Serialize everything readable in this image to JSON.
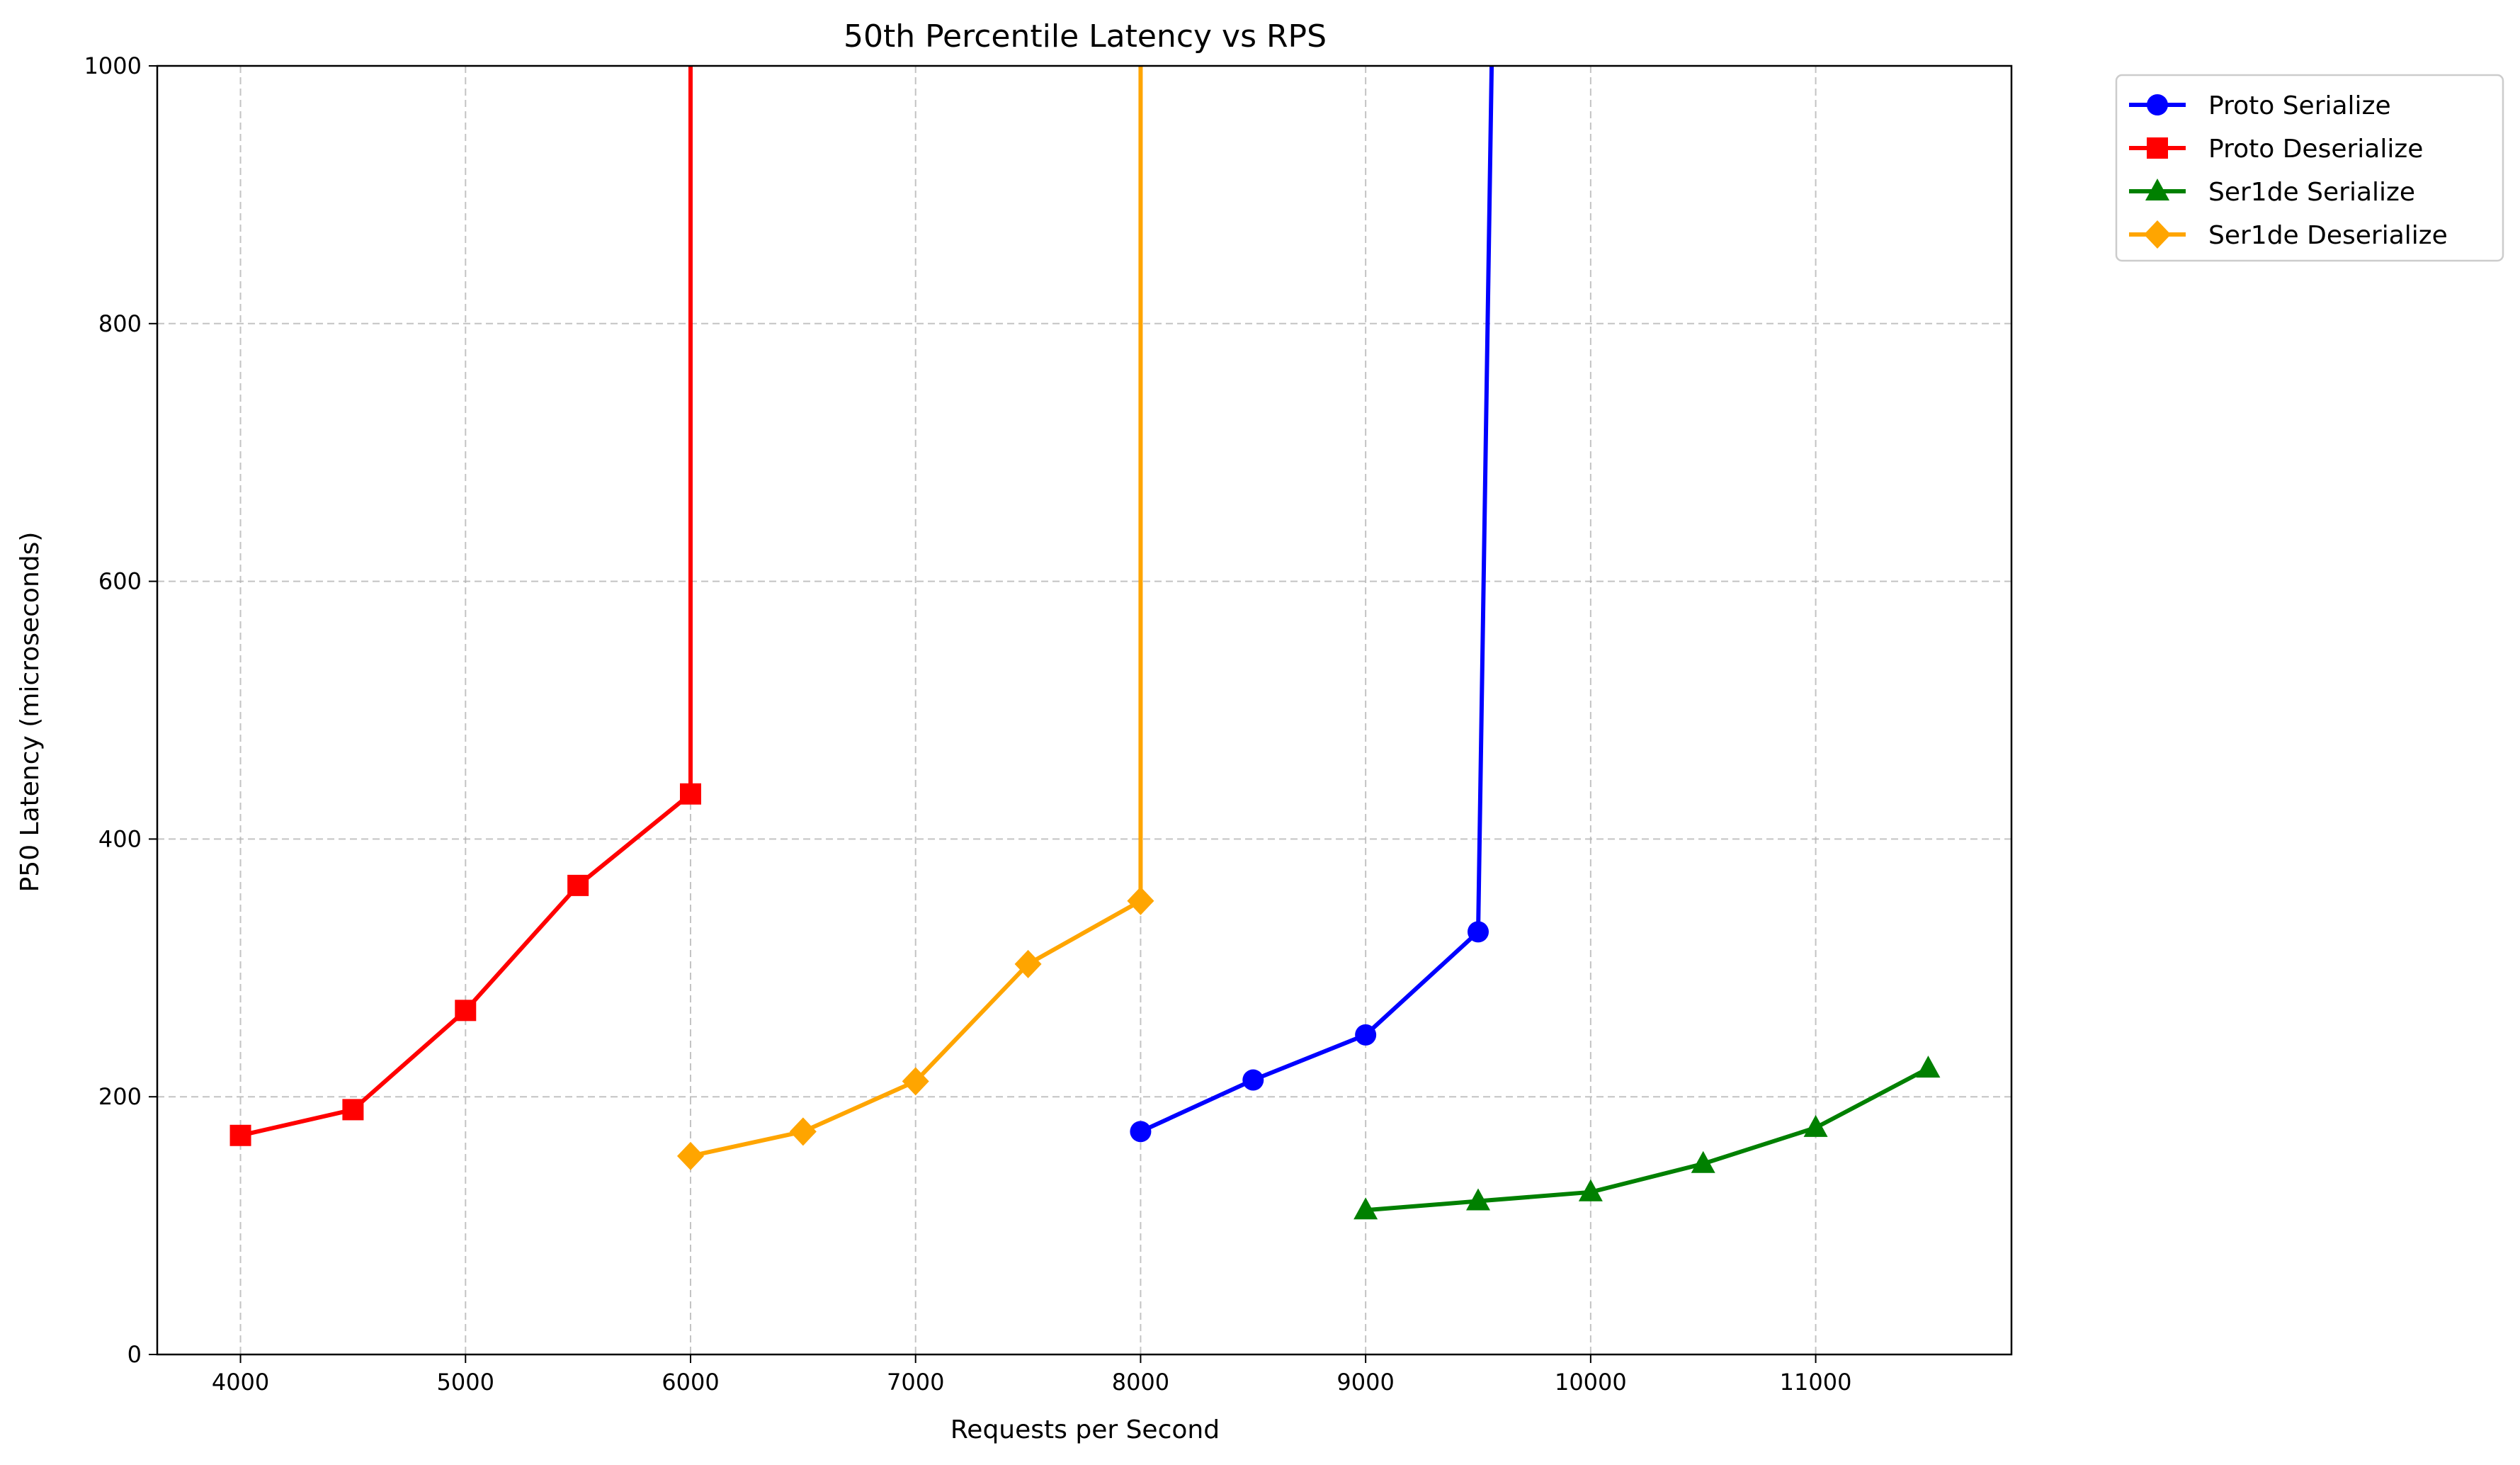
{
  "chart_data": {
    "type": "line",
    "title": "50th Percentile Latency vs RPS",
    "xlabel": "Requests per Second",
    "ylabel": "P50 Latency (microseconds)",
    "xlim": [
      3630,
      11870
    ],
    "ylim": [
      0,
      1000
    ],
    "x_ticks": [
      4000,
      5000,
      6000,
      7000,
      8000,
      9000,
      10000,
      11000
    ],
    "y_ticks": [
      0,
      200,
      400,
      600,
      800,
      1000
    ],
    "grid": true,
    "legend_position": "outside-top-right",
    "series": [
      {
        "name": "Proto Serialize",
        "color": "#0000ff",
        "marker": "circle",
        "points": [
          [
            8000,
            173
          ],
          [
            8500,
            213
          ],
          [
            9000,
            248
          ],
          [
            9500,
            328
          ],
          [
            9560,
            1000
          ]
        ],
        "marker_count": 4
      },
      {
        "name": "Proto Deserialize",
        "color": "#ff0000",
        "marker": "square",
        "points": [
          [
            4000,
            170
          ],
          [
            4500,
            190
          ],
          [
            5000,
            267
          ],
          [
            5500,
            364
          ],
          [
            6000,
            435
          ],
          [
            6000,
            1000
          ]
        ],
        "marker_count": 5
      },
      {
        "name": "Ser1de Serialize",
        "color": "#008000",
        "marker": "triangle",
        "points": [
          [
            9000,
            112
          ],
          [
            9500,
            119
          ],
          [
            10000,
            126
          ],
          [
            10500,
            148
          ],
          [
            11000,
            176
          ],
          [
            11500,
            222
          ]
        ],
        "marker_count": 6
      },
      {
        "name": "Ser1de Deserialize",
        "color": "#ffa500",
        "marker": "diamond",
        "points": [
          [
            6000,
            154
          ],
          [
            6500,
            173
          ],
          [
            7000,
            212
          ],
          [
            7500,
            303
          ],
          [
            8000,
            352
          ],
          [
            8000,
            1000
          ]
        ],
        "marker_count": 5
      }
    ]
  }
}
